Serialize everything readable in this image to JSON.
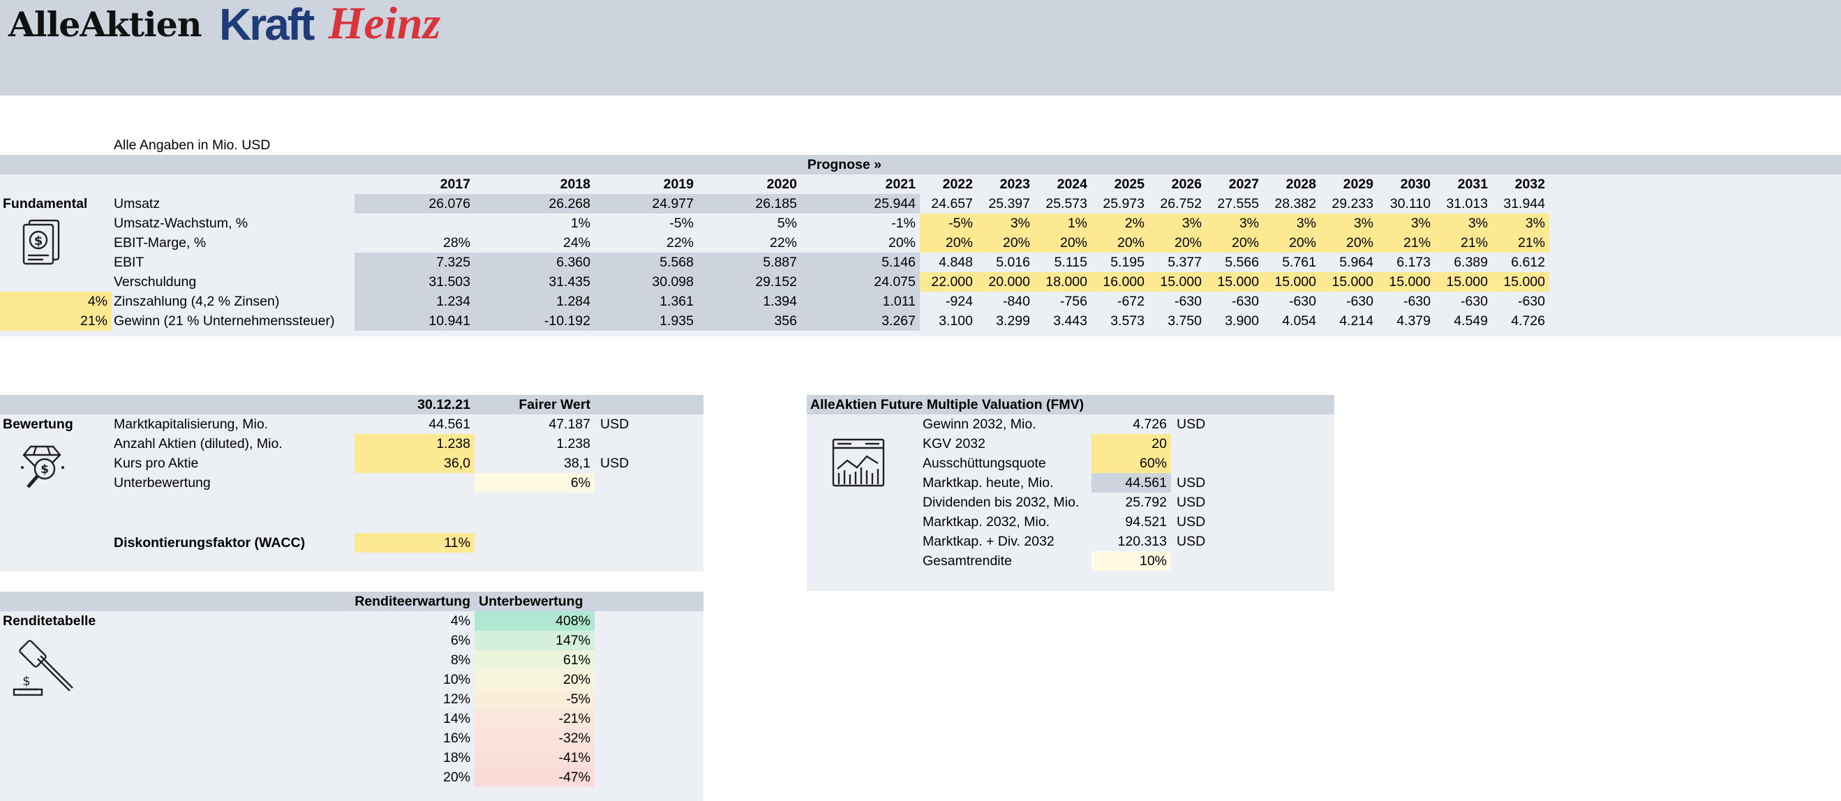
{
  "logo": {
    "alleaktien": "AlleAktien",
    "brand_part1": "Kraft",
    "brand_part2": "Heinz"
  },
  "note": "Alle Angaben in Mio. USD",
  "prognose_label": "Prognose »",
  "fundamental": {
    "title": "Fundamental",
    "years": [
      "2017",
      "2018",
      "2019",
      "2020",
      "2021",
      "2022",
      "2023",
      "2024",
      "2025",
      "2026",
      "2027",
      "2028",
      "2029",
      "2030",
      "2031",
      "2032"
    ],
    "rows": [
      {
        "label": "Umsatz",
        "prefix": "",
        "values": [
          "26.076",
          "26.268",
          "24.977",
          "26.185",
          "25.944",
          "24.657",
          "25.397",
          "25.573",
          "25.973",
          "26.752",
          "27.555",
          "28.382",
          "29.233",
          "30.110",
          "31.013",
          "31.944"
        ]
      },
      {
        "label": "Umsatz-Wachstum, %",
        "prefix": "",
        "values": [
          "",
          "1%",
          "-5%",
          "5%",
          "-1%",
          "-5%",
          "3%",
          "1%",
          "2%",
          "3%",
          "3%",
          "3%",
          "3%",
          "3%",
          "3%",
          "3%"
        ]
      },
      {
        "label": "EBIT-Marge, %",
        "prefix": "",
        "values": [
          "28%",
          "24%",
          "22%",
          "22%",
          "20%",
          "20%",
          "20%",
          "20%",
          "20%",
          "20%",
          "20%",
          "20%",
          "20%",
          "21%",
          "21%",
          "21%"
        ]
      },
      {
        "label": "EBIT",
        "prefix": "",
        "values": [
          "7.325",
          "6.360",
          "5.568",
          "5.887",
          "5.146",
          "4.848",
          "5.016",
          "5.115",
          "5.195",
          "5.377",
          "5.566",
          "5.761",
          "5.964",
          "6.173",
          "6.389",
          "6.612"
        ]
      },
      {
        "label": "Verschuldung",
        "prefix": "",
        "values": [
          "31.503",
          "31.435",
          "30.098",
          "29.152",
          "24.075",
          "22.000",
          "20.000",
          "18.000",
          "16.000",
          "15.000",
          "15.000",
          "15.000",
          "15.000",
          "15.000",
          "15.000",
          "15.000"
        ]
      },
      {
        "label": "Zinszahlung (4,2 % Zinsen)",
        "prefix": "4%",
        "values": [
          "1.234",
          "1.284",
          "1.361",
          "1.394",
          "1.011",
          "-924",
          "-840",
          "-756",
          "-672",
          "-630",
          "-630",
          "-630",
          "-630",
          "-630",
          "-630",
          "-630"
        ]
      },
      {
        "label": "Gewinn (21 % Unternehmenssteuer)",
        "prefix": "21%",
        "values": [
          "10.941",
          "-10.192",
          "1.935",
          "356",
          "3.267",
          "3.100",
          "3.299",
          "3.443",
          "3.573",
          "3.750",
          "3.900",
          "4.054",
          "4.214",
          "4.379",
          "4.549",
          "4.726"
        ]
      }
    ]
  },
  "bewertung": {
    "title": "Bewertung",
    "col_date": "30.12.21",
    "col_fair": "Fairer Wert",
    "rows": [
      {
        "label": "Marktkapitalisierung, Mio.",
        "current": "44.561",
        "fair": "47.187",
        "unit": "USD"
      },
      {
        "label": "Anzahl Aktien (diluted), Mio.",
        "current": "1.238",
        "fair": "1.238",
        "unit": ""
      },
      {
        "label": "Kurs pro Aktie",
        "current": "36,0",
        "fair": "38,1",
        "unit": "USD"
      },
      {
        "label": "Unterbewertung",
        "current": "",
        "fair": "6%",
        "unit": ""
      }
    ],
    "wacc_label": "Diskontierungsfaktor (WACC)",
    "wacc_value": "11%"
  },
  "fmv": {
    "title": "AlleAktien Future Multiple Valuation (FMV)",
    "rows": [
      {
        "label": "Gewinn 2032, Mio.",
        "value": "4.726",
        "unit": "USD"
      },
      {
        "label": "KGV 2032",
        "value": "20",
        "unit": ""
      },
      {
        "label": "Ausschüttungsquote",
        "value": "60%",
        "unit": ""
      },
      {
        "label": "Marktkap. heute, Mio.",
        "value": "44.561",
        "unit": "USD"
      },
      {
        "label": "Dividenden bis 2032, Mio.",
        "value": "25.792",
        "unit": "USD"
      },
      {
        "label": "Marktkap. 2032, Mio.",
        "value": "94.521",
        "unit": "USD"
      },
      {
        "label": "Marktkap. + Div. 2032",
        "value": "120.313",
        "unit": "USD"
      },
      {
        "label": "Gesamtrendite",
        "value": "10%",
        "unit": ""
      }
    ]
  },
  "renditetabelle": {
    "title": "Renditetabelle",
    "col_rendite": "Renditeerwartung",
    "col_unter": "Unterbewertung",
    "rows": [
      {
        "rendite": "4%",
        "unter": "408%",
        "color": "#aee8d2"
      },
      {
        "rendite": "6%",
        "unter": "147%",
        "color": "#d4efdb"
      },
      {
        "rendite": "8%",
        "unter": "61%",
        "color": "#ecf5dc"
      },
      {
        "rendite": "10%",
        "unter": "20%",
        "color": "#f6f4da"
      },
      {
        "rendite": "12%",
        "unter": "-5%",
        "color": "#faeedb"
      },
      {
        "rendite": "14%",
        "unter": "-21%",
        "color": "#fae7dc"
      },
      {
        "rendite": "16%",
        "unter": "-32%",
        "color": "#fae3dc"
      },
      {
        "rendite": "18%",
        "unter": "-41%",
        "color": "#f9e0da"
      },
      {
        "rendite": "20%",
        "unter": "-47%",
        "color": "#f9dcd8"
      }
    ]
  }
}
